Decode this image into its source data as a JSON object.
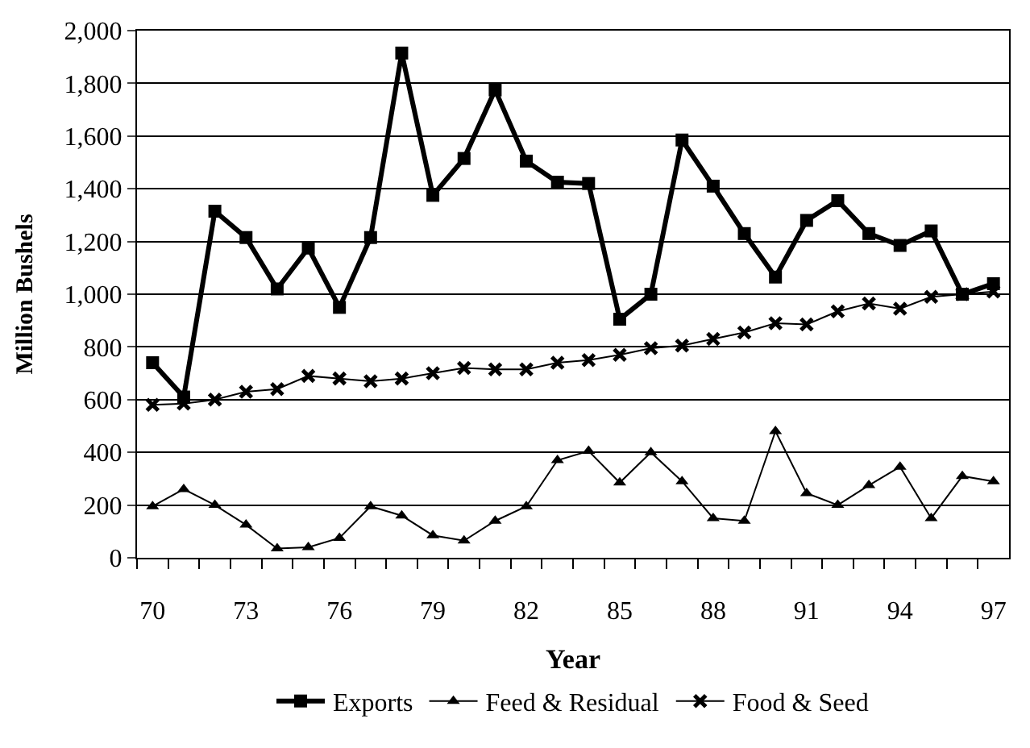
{
  "chart_data": {
    "type": "line",
    "xlabel": "Year",
    "ylabel": "Million Bushels",
    "categories": [
      "70",
      null,
      null,
      "73",
      null,
      null,
      "76",
      null,
      null,
      "79",
      null,
      null,
      "82",
      null,
      null,
      "85",
      null,
      null,
      "88",
      null,
      null,
      "91",
      null,
      null,
      "94",
      null,
      null,
      "97"
    ],
    "series": [
      {
        "name": "Exports",
        "color": "#000000",
        "marker": "square",
        "values": [
          740,
          610,
          1315,
          1215,
          1020,
          1175,
          950,
          1215,
          1915,
          1375,
          1515,
          1775,
          1505,
          1425,
          1420,
          905,
          1000,
          1585,
          1410,
          1230,
          1065,
          1280,
          1355,
          1230,
          1185,
          1240,
          1000,
          1040
        ]
      },
      {
        "name": "Feed & Residual",
        "color": "#000000",
        "marker": "triangle",
        "values": [
          195,
          260,
          200,
          125,
          35,
          40,
          75,
          195,
          160,
          85,
          65,
          140,
          195,
          370,
          405,
          285,
          400,
          290,
          150,
          140,
          480,
          245,
          200,
          275,
          345,
          150,
          310,
          290
        ]
      },
      {
        "name": "Food & Seed",
        "color": "#000000",
        "marker": "cross",
        "values": [
          580,
          585,
          600,
          630,
          640,
          690,
          680,
          670,
          680,
          700,
          720,
          715,
          715,
          740,
          750,
          770,
          795,
          805,
          830,
          855,
          890,
          885,
          935,
          965,
          945,
          990,
          1000,
          1010
        ]
      }
    ],
    "ylim": [
      0,
      2000
    ],
    "yticks": [
      0,
      200,
      400,
      600,
      800,
      {
        "value": 1000,
        "label": "1,000"
      },
      {
        "value": 1200,
        "label": "1,200"
      },
      {
        "value": 1400,
        "label": "1,400"
      },
      {
        "value": 1600,
        "label": "1,600"
      },
      {
        "value": 1800,
        "label": "1,800"
      },
      {
        "value": 2000,
        "label": "2,000"
      }
    ],
    "grid": "y",
    "legend": "bottom",
    "line_style": "solid"
  }
}
